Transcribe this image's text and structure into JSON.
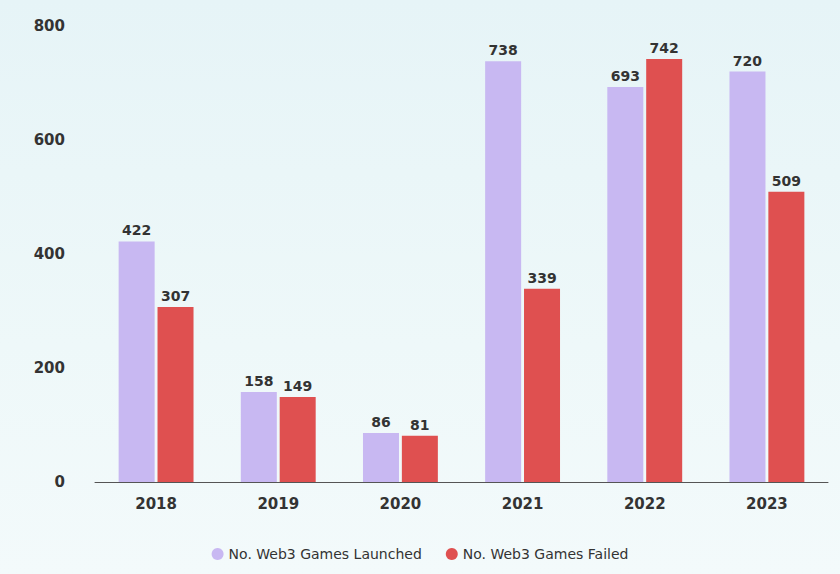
{
  "chart_data": {
    "type": "bar",
    "categories": [
      "2018",
      "2019",
      "2020",
      "2021",
      "2022",
      "2023"
    ],
    "series": [
      {
        "name": "No. Web3 Games Launched",
        "color": "#c8b8f2",
        "values": [
          422,
          158,
          86,
          738,
          693,
          720
        ]
      },
      {
        "name": "No. Web3 Games Failed",
        "color": "#df5050",
        "values": [
          307,
          149,
          81,
          339,
          742,
          509
        ]
      }
    ],
    "ylim": [
      0,
      800
    ],
    "yticks": [
      0,
      200,
      400,
      600,
      800
    ],
    "grid": false,
    "legend": "bottom",
    "data_labels": true
  }
}
